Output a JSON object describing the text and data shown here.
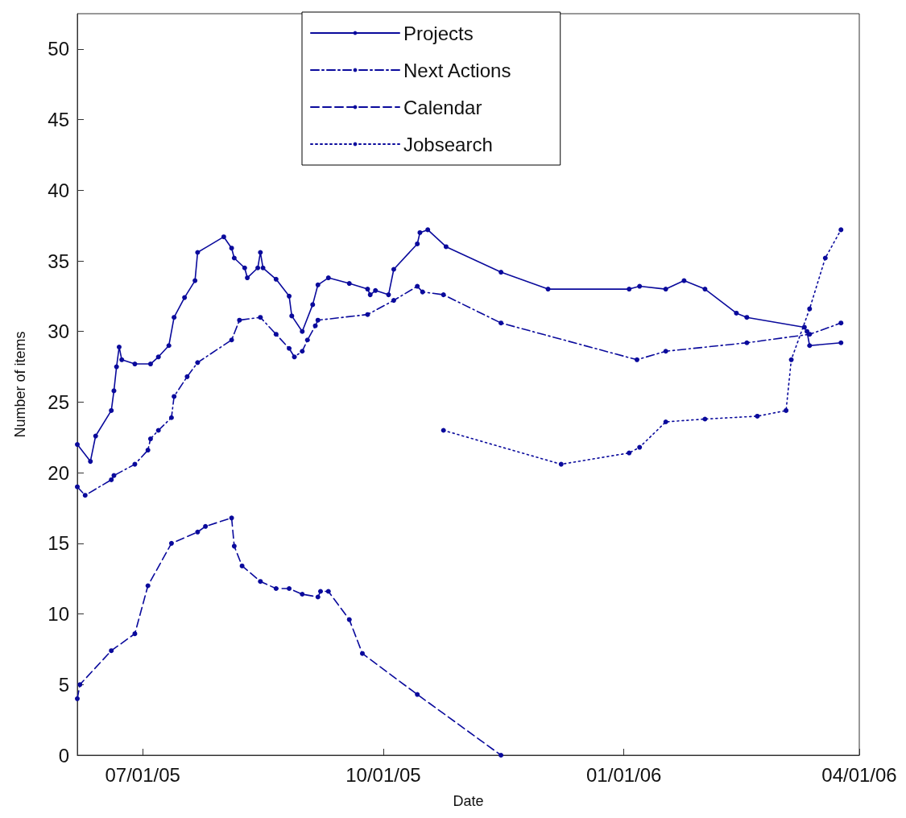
{
  "chart_data": {
    "type": "line",
    "xlabel": "Date",
    "ylabel": "Number of items",
    "xlim": [
      "2005-06-06",
      "2006-04-01"
    ],
    "ylim": [
      0,
      52.5
    ],
    "xticks": [
      {
        "value": "2005-07-01",
        "label": "07/01/05"
      },
      {
        "value": "2005-10-01",
        "label": "10/01/05"
      },
      {
        "value": "2006-01-01",
        "label": "01/01/06"
      },
      {
        "value": "2006-04-01",
        "label": "04/01/06"
      }
    ],
    "yticks": [
      0,
      5,
      10,
      15,
      20,
      25,
      30,
      35,
      40,
      45,
      50
    ],
    "grid": false,
    "legend": "top",
    "marker": "circle",
    "series": [
      {
        "name": "Projects",
        "color": "#0a0a9c",
        "line_style": "solid",
        "x": [
          "2005-06-06",
          "2005-06-11",
          "2005-06-13",
          "2005-06-19",
          "2005-06-20",
          "2005-06-21",
          "2005-06-22",
          "2005-06-23",
          "2005-06-28",
          "2005-07-04",
          "2005-07-07",
          "2005-07-11",
          "2005-07-13",
          "2005-07-17",
          "2005-07-21",
          "2005-07-22",
          "2005-08-01",
          "2005-08-04",
          "2005-08-05",
          "2005-08-09",
          "2005-08-10",
          "2005-08-14",
          "2005-08-15",
          "2005-08-16",
          "2005-08-21",
          "2005-08-26",
          "2005-08-27",
          "2005-08-31",
          "2005-09-04",
          "2005-09-06",
          "2005-09-10",
          "2005-09-18",
          "2005-09-25",
          "2005-09-26",
          "2005-09-28",
          "2005-10-03",
          "2005-10-05",
          "2005-10-14",
          "2005-10-15",
          "2005-10-18",
          "2005-10-25",
          "2005-11-15",
          "2005-12-03",
          "2006-01-03",
          "2006-01-07",
          "2006-01-17",
          "2006-01-24",
          "2006-02-01",
          "2006-02-13",
          "2006-02-17",
          "2006-03-11",
          "2006-03-12",
          "2006-03-13",
          "2006-03-25"
        ],
        "values": [
          22.0,
          20.8,
          22.6,
          24.4,
          25.8,
          27.5,
          28.9,
          28.0,
          27.7,
          27.7,
          28.2,
          29.0,
          31.0,
          32.4,
          33.6,
          35.6,
          36.7,
          35.9,
          35.2,
          34.5,
          33.8,
          34.5,
          35.6,
          34.5,
          33.7,
          32.5,
          31.1,
          30.0,
          31.9,
          33.3,
          33.8,
          33.4,
          33.0,
          32.6,
          32.9,
          32.6,
          34.4,
          36.2,
          37.0,
          37.2,
          36.0,
          34.2,
          33.0,
          33.0,
          33.2,
          33.0,
          33.6,
          33.0,
          31.3,
          31.0,
          30.3,
          30.0,
          29.0,
          29.2
        ]
      },
      {
        "name": "Next Actions",
        "color": "#0a0a9c",
        "line_style": "dashdot",
        "x": [
          "2005-06-06",
          "2005-06-09",
          "2005-06-19",
          "2005-06-20",
          "2005-06-28",
          "2005-07-03",
          "2005-07-04",
          "2005-07-07",
          "2005-07-12",
          "2005-07-13",
          "2005-07-18",
          "2005-07-22",
          "2005-08-04",
          "2005-08-07",
          "2005-08-15",
          "2005-08-21",
          "2005-08-26",
          "2005-08-28",
          "2005-08-31",
          "2005-09-02",
          "2005-09-05",
          "2005-09-06",
          "2005-09-25",
          "2005-10-05",
          "2005-10-14",
          "2005-10-16",
          "2005-10-24",
          "2005-11-15",
          "2006-01-06",
          "2006-01-17",
          "2006-02-17",
          "2006-03-13",
          "2006-03-25"
        ],
        "values": [
          19.0,
          18.4,
          19.5,
          19.8,
          20.6,
          21.6,
          22.4,
          23.0,
          23.9,
          25.4,
          26.8,
          27.8,
          29.4,
          30.8,
          31.0,
          29.8,
          28.8,
          28.2,
          28.6,
          29.4,
          30.4,
          30.8,
          31.2,
          32.2,
          33.2,
          32.8,
          32.6,
          30.6,
          28.0,
          28.6,
          29.2,
          29.8,
          30.6
        ]
      },
      {
        "name": "Calendar",
        "color": "#0a0a9c",
        "line_style": "dashed",
        "x": [
          "2005-06-06",
          "2005-06-07",
          "2005-06-19",
          "2005-06-28",
          "2005-07-03",
          "2005-07-12",
          "2005-07-22",
          "2005-07-25",
          "2005-08-04",
          "2005-08-05",
          "2005-08-08",
          "2005-08-15",
          "2005-08-21",
          "2005-08-26",
          "2005-08-31",
          "2005-09-06",
          "2005-09-07",
          "2005-09-10",
          "2005-09-18",
          "2005-09-23",
          "2005-10-14",
          "2005-11-15"
        ],
        "values": [
          4.0,
          5.0,
          7.4,
          8.6,
          12.0,
          15.0,
          15.8,
          16.2,
          16.8,
          14.8,
          13.4,
          12.3,
          11.8,
          11.8,
          11.4,
          11.2,
          11.6,
          11.6,
          9.6,
          7.2,
          4.3,
          0
        ]
      },
      {
        "name": "Jobsearch",
        "color": "#0a0a9c",
        "line_style": "dotted",
        "x": [
          "2005-10-24",
          "2005-12-08",
          "2006-01-03",
          "2006-01-07",
          "2006-01-17",
          "2006-02-01",
          "2006-02-21",
          "2006-03-04",
          "2006-03-06",
          "2006-03-13",
          "2006-03-19",
          "2006-03-25"
        ],
        "values": [
          23.0,
          20.6,
          21.4,
          21.8,
          23.6,
          23.8,
          24.0,
          24.4,
          28.0,
          31.6,
          35.2,
          37.2
        ]
      }
    ]
  }
}
